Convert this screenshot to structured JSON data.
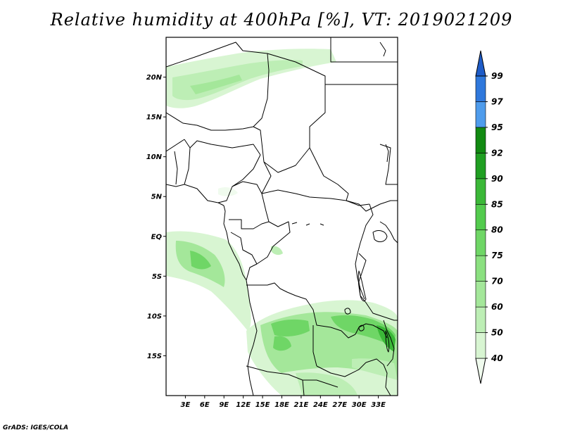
{
  "title": "Relative humidity at 400hPa [%], VT: 2019021209",
  "credit": "GrADS: IGES/COLA",
  "map": {
    "lat_labels": [
      {
        "label": "20N",
        "lat": 20
      },
      {
        "label": "15N",
        "lat": 15
      },
      {
        "label": "10N",
        "lat": 10
      },
      {
        "label": "5N",
        "lat": 5
      },
      {
        "label": "EQ",
        "lat": 0
      },
      {
        "label": "5S",
        "lat": -5
      },
      {
        "label": "10S",
        "lat": -10
      },
      {
        "label": "15S",
        "lat": -15
      }
    ],
    "lon_labels": [
      {
        "label": "3E",
        "lon": 3
      },
      {
        "label": "6E",
        "lon": 6
      },
      {
        "label": "9E",
        "lon": 9
      },
      {
        "label": "12E",
        "lon": 12
      },
      {
        "label": "15E",
        "lon": 15
      },
      {
        "label": "18E",
        "lon": 18
      },
      {
        "label": "21E",
        "lon": 21
      },
      {
        "label": "24E",
        "lon": 24
      },
      {
        "label": "27E",
        "lon": 27
      },
      {
        "label": "30E",
        "lon": 30
      },
      {
        "label": "33E",
        "lon": 33
      }
    ]
  },
  "colorbar": {
    "levels": [
      "40",
      "50",
      "60",
      "70",
      "75",
      "80",
      "85",
      "90",
      "92",
      "95",
      "97",
      "99"
    ],
    "colors": [
      "#f0fbee",
      "#d8f5d2",
      "#bdeeb5",
      "#a4e79a",
      "#8be080",
      "#6fd666",
      "#53cb4e",
      "#3bb838",
      "#209f22",
      "#128a12",
      "#4f9cec",
      "#2f78dc",
      "#1e5cc8"
    ]
  }
}
